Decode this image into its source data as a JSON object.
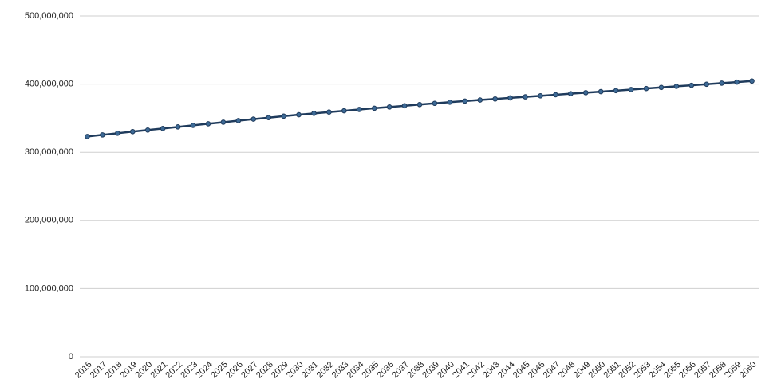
{
  "chart_data": {
    "type": "line",
    "categories": [
      "2016",
      "2017",
      "2018",
      "2019",
      "2020",
      "2021",
      "2022",
      "2023",
      "2024",
      "2025",
      "2026",
      "2027",
      "2028",
      "2029",
      "2030",
      "2031",
      "2032",
      "2033",
      "2034",
      "2035",
      "2036",
      "2037",
      "2038",
      "2039",
      "2040",
      "2041",
      "2042",
      "2043",
      "2044",
      "2045",
      "2046",
      "2047",
      "2048",
      "2049",
      "2050",
      "2051",
      "2052",
      "2053",
      "2054",
      "2055",
      "2056",
      "2057",
      "2058",
      "2059",
      "2060"
    ],
    "values": [
      323100000,
      325500000,
      327900000,
      330300000,
      332600000,
      334900000,
      337200000,
      339500000,
      341800000,
      344100000,
      346400000,
      348600000,
      350800000,
      353000000,
      355100000,
      357100000,
      359000000,
      360900000,
      362800000,
      364600000,
      366400000,
      368200000,
      370000000,
      371800000,
      373500000,
      375100000,
      376700000,
      378200000,
      379800000,
      381300000,
      382800000,
      384400000,
      385900000,
      387400000,
      388900000,
      390400000,
      392000000,
      393500000,
      395100000,
      396700000,
      398200000,
      399800000,
      401400000,
      402900000,
      404500000
    ],
    "color": "#1f3b5c",
    "ylim": [
      0,
      500000000
    ],
    "yticks": [
      0,
      {
        "value": 100000000,
        "label": "100,000,000"
      },
      {
        "value": 200000000,
        "label": "200,000,000"
      },
      {
        "value": 300000000,
        "label": "300,000,000"
      },
      {
        "value": 400000000,
        "label": "400,000,000"
      },
      {
        "value": 500000000,
        "label": "500,000,000"
      }
    ],
    "grid": true
  }
}
